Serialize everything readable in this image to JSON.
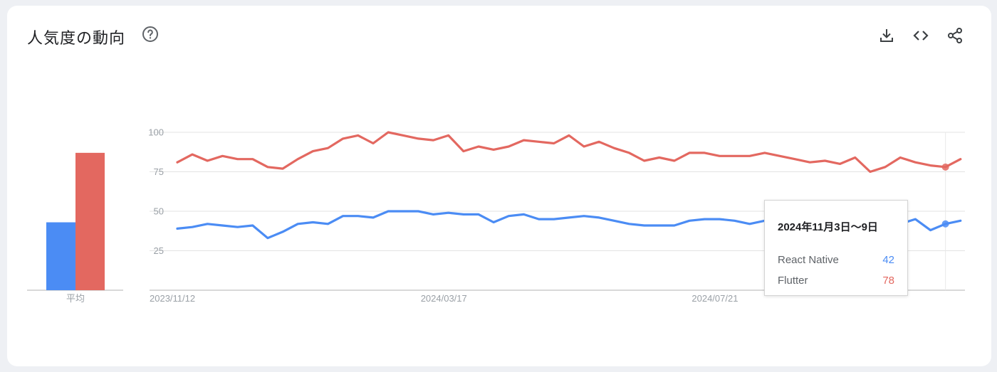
{
  "header": {
    "title": "人気度の動向",
    "help_icon": "help-circle-icon",
    "actions": [
      {
        "name": "download-icon"
      },
      {
        "name": "embed-code-icon"
      },
      {
        "name": "share-icon"
      }
    ]
  },
  "colors": {
    "React Native": "#4b8cf4",
    "Flutter": "#e36860",
    "grid": "#e3e3e3",
    "axis": "#b0b0b0",
    "label": "#9aa0a6"
  },
  "average": {
    "label": "平均",
    "values": {
      "React Native": 43,
      "Flutter": 87
    }
  },
  "tooltip": {
    "date": "2024年11月3日〜9日",
    "rows": [
      {
        "name": "React Native",
        "value": "42"
      },
      {
        "name": "Flutter",
        "value": "78"
      }
    ]
  },
  "chart_data": {
    "type": "line",
    "ylim": [
      0,
      100
    ],
    "yticks": [
      25,
      50,
      75,
      100
    ],
    "grid": true,
    "xtick_labels": [
      {
        "index": 0,
        "label": "2023/11/12"
      },
      {
        "index": 18,
        "label": "2024/03/17"
      },
      {
        "index": 36,
        "label": "2024/07/21"
      }
    ],
    "highlight_index": 51,
    "series": [
      {
        "name": "React Native",
        "values": [
          39,
          40,
          42,
          41,
          40,
          41,
          33,
          37,
          42,
          43,
          42,
          47,
          47,
          46,
          50,
          50,
          50,
          48,
          49,
          48,
          48,
          43,
          47,
          48,
          45,
          45,
          46,
          47,
          46,
          44,
          42,
          41,
          41,
          41,
          44,
          45,
          45,
          44,
          42,
          44,
          42,
          41,
          41,
          42,
          41,
          40,
          41,
          41,
          42,
          45,
          38,
          42,
          44
        ]
      },
      {
        "name": "Flutter",
        "values": [
          81,
          86,
          82,
          85,
          83,
          83,
          78,
          77,
          83,
          88,
          90,
          96,
          98,
          93,
          100,
          98,
          96,
          95,
          98,
          88,
          91,
          89,
          91,
          95,
          94,
          93,
          98,
          91,
          94,
          90,
          87,
          82,
          84,
          82,
          87,
          87,
          85,
          85,
          85,
          87,
          85,
          83,
          81,
          82,
          80,
          84,
          75,
          78,
          84,
          81,
          79,
          78,
          83
        ]
      }
    ]
  }
}
